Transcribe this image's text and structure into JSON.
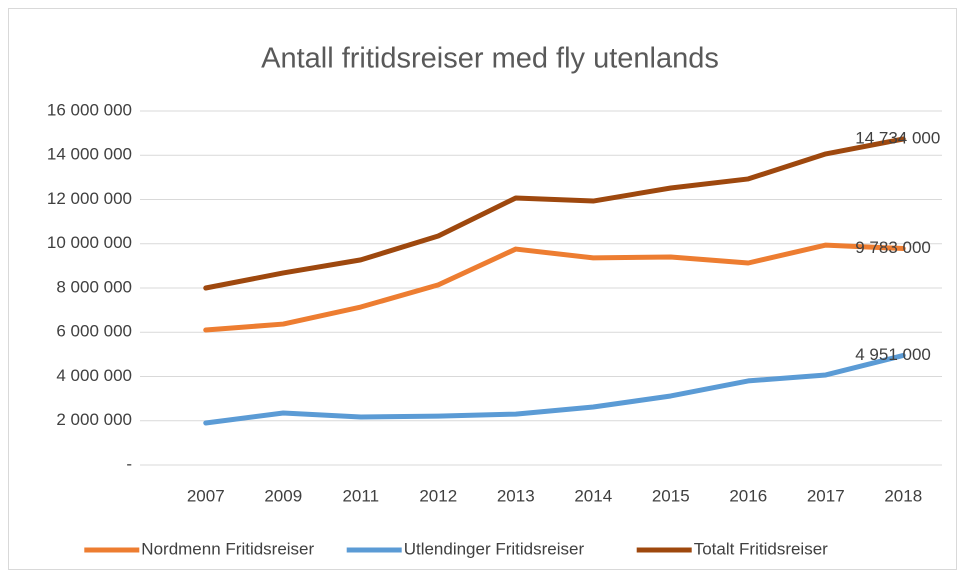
{
  "chart_data": {
    "type": "line",
    "title": "Antall fritidsreiser med fly utenlands",
    "categories": [
      "2007",
      "2009",
      "2011",
      "2012",
      "2013",
      "2014",
      "2015",
      "2016",
      "2017",
      "2018"
    ],
    "series": [
      {
        "name": "Nordmenn Fritidsreiser",
        "color": "#ed7d31",
        "values": [
          6100000,
          6370000,
          7140000,
          8140000,
          9760000,
          9360000,
          9400000,
          9130000,
          9940000,
          9783000
        ],
        "value_labels": [
          null,
          null,
          null,
          null,
          null,
          null,
          null,
          null,
          null,
          "9 783 000"
        ]
      },
      {
        "name": "Utlendinger Fritidsreiser",
        "color": "#5b9bd5",
        "values": [
          1900000,
          2350000,
          2170000,
          2210000,
          2300000,
          2620000,
          3120000,
          3800000,
          4070000,
          4951000
        ],
        "value_labels": [
          null,
          null,
          null,
          null,
          null,
          null,
          null,
          null,
          null,
          "4 951 000"
        ]
      },
      {
        "name": "Totalt Fritidsreiser",
        "color": "#9e480e",
        "values": [
          8000000,
          8680000,
          9270000,
          10350000,
          12070000,
          11930000,
          12520000,
          12930000,
          14060000,
          14734000
        ],
        "value_labels": [
          null,
          null,
          null,
          null,
          null,
          null,
          null,
          null,
          null,
          "14 734 000"
        ]
      }
    ],
    "ylim": [
      0,
      16000000
    ],
    "yticks": [
      {
        "value": 0,
        "label": "-"
      },
      {
        "value": 2000000,
        "label": "2 000 000"
      },
      {
        "value": 4000000,
        "label": "4 000 000"
      },
      {
        "value": 6000000,
        "label": "6 000 000"
      },
      {
        "value": 8000000,
        "label": "8 000 000"
      },
      {
        "value": 10000000,
        "label": "10 000 000"
      },
      {
        "value": 12000000,
        "label": "12 000 000"
      },
      {
        "value": 14000000,
        "label": "14 000 000"
      },
      {
        "value": 16000000,
        "label": "16 000 000"
      }
    ],
    "grid": true,
    "legend": "bottom"
  }
}
